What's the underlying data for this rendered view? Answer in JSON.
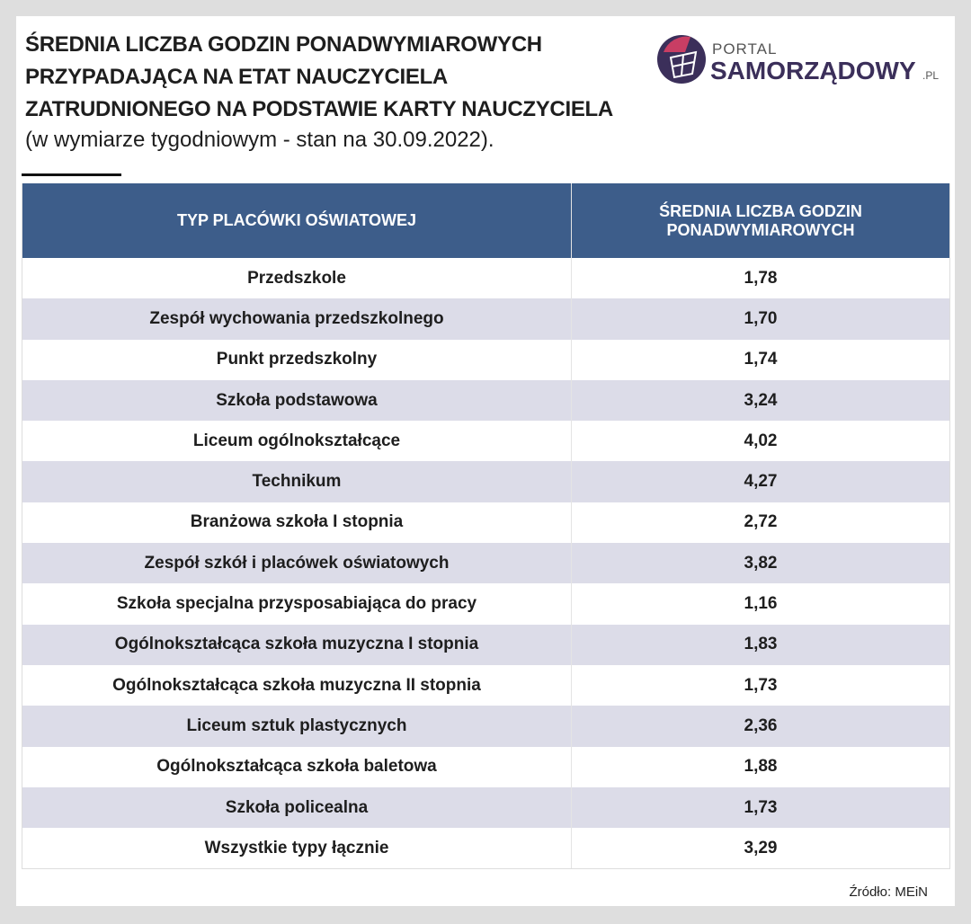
{
  "header": {
    "title": [
      "ŚREDNIA LICZBA GODZIN PONADWYMIAROWYCH",
      "PRZYPADAJĄCA NA ETAT NAUCZYCIELA",
      "ZATRUDNIONEGO NA PODSTAWIE KARTY NAUCZYCIELA"
    ],
    "subtitle": "(w wymiarze tygodniowym - stan na 30.09.2022).",
    "logo": {
      "top": "PORTAL",
      "main": "SAMORZĄDOWY",
      "suffix": ".PL"
    }
  },
  "table": {
    "columns": [
      "TYP PLACÓWKI OŚWIATOWEJ",
      "ŚREDNIA LICZBA GODZIN PONADWYMIAROWYCH"
    ],
    "rows": [
      [
        "Przedszkole",
        "1,78"
      ],
      [
        "Zespół wychowania przedszkolnego",
        "1,70"
      ],
      [
        "Punkt przedszkolny",
        "1,74"
      ],
      [
        "Szkoła podstawowa",
        "3,24"
      ],
      [
        "Liceum ogólnokształcące",
        "4,02"
      ],
      [
        "Technikum",
        "4,27"
      ],
      [
        "Branżowa szkoła I stopnia",
        "2,72"
      ],
      [
        "Zespół szkół i placówek oświatowych",
        "3,82"
      ],
      [
        "Szkoła specjalna przysposabiająca do pracy",
        "1,16"
      ],
      [
        "Ogólnokształcąca szkoła muzyczna I stopnia",
        "1,83"
      ],
      [
        "Ogólnokształcąca szkoła muzyczna II stopnia",
        "1,73"
      ],
      [
        "Liceum sztuk plastycznych",
        "2,36"
      ],
      [
        "Ogólnokształcąca szkoła baletowa",
        "1,88"
      ],
      [
        "Szkoła policealna",
        "1,73"
      ],
      [
        "Wszystkie typy łącznie",
        "3,29"
      ]
    ]
  },
  "footer": {
    "source": "Źródło: MEiN"
  }
}
